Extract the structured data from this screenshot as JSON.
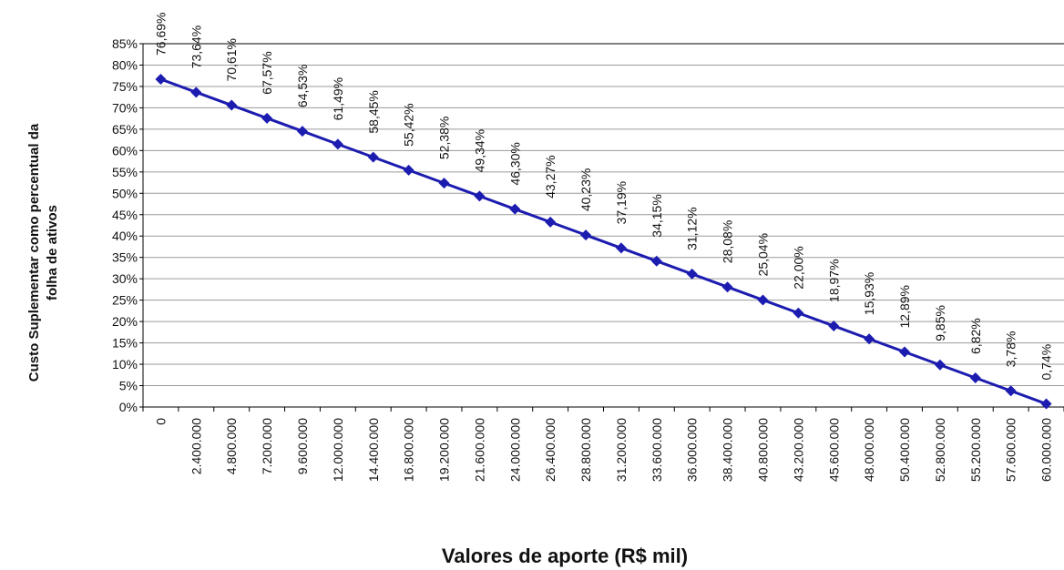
{
  "chart_data": {
    "type": "line",
    "ylabel": [
      "Custo Suplementar como percentual da",
      "folha de ativos"
    ],
    "xlabel": "Valores de aporte (R$ mil)",
    "categories": [
      "0",
      "2.400.000",
      "4.800.000",
      "7.200.000",
      "9.600.000",
      "12.000.000",
      "14.400.000",
      "16.800.000",
      "19.200.000",
      "21.600.000",
      "24.000.000",
      "26.400.000",
      "28.800.000",
      "31.200.000",
      "33.600.000",
      "36.000.000",
      "38.400.000",
      "40.800.000",
      "43.200.000",
      "45.600.000",
      "48.000.000",
      "50.400.000",
      "52.800.000",
      "55.200.000",
      "57.600.000",
      "60.000.000"
    ],
    "values": [
      76.69,
      73.64,
      70.61,
      67.57,
      64.53,
      61.49,
      58.45,
      55.42,
      52.38,
      49.34,
      46.3,
      43.27,
      40.23,
      37.19,
      34.15,
      31.12,
      28.08,
      25.04,
      22.0,
      18.97,
      15.93,
      12.89,
      9.85,
      6.82,
      3.78,
      0.74
    ],
    "value_labels": [
      "76,69%",
      "73,64%",
      "70,61%",
      "67,57%",
      "64,53%",
      "61,49%",
      "58,45%",
      "55,42%",
      "52,38%",
      "49,34%",
      "46,30%",
      "43,27%",
      "40,23%",
      "37,19%",
      "34,15%",
      "31,12%",
      "28,08%",
      "25,04%",
      "22,00%",
      "18,97%",
      "15,93%",
      "12,89%",
      "9,85%",
      "6,82%",
      "3,78%",
      "0,74%"
    ],
    "color": "#1c1cb0",
    "ylim": [
      0,
      85
    ],
    "yticks": [
      {
        "value": 0,
        "label": "0%"
      },
      {
        "value": 5,
        "label": "5%"
      },
      {
        "value": 10,
        "label": "10%"
      },
      {
        "value": 15,
        "label": "15%"
      },
      {
        "value": 20,
        "label": "20%"
      },
      {
        "value": 25,
        "label": "25%"
      },
      {
        "value": 30,
        "label": "30%"
      },
      {
        "value": 35,
        "label": "35%"
      },
      {
        "value": 40,
        "label": "40%"
      },
      {
        "value": 45,
        "label": "45%"
      },
      {
        "value": 50,
        "label": "50%"
      },
      {
        "value": 55,
        "label": "55%"
      },
      {
        "value": 60,
        "label": "60%"
      },
      {
        "value": 65,
        "label": "65%"
      },
      {
        "value": 70,
        "label": "70%"
      },
      {
        "value": 75,
        "label": "75%"
      },
      {
        "value": 80,
        "label": "80%"
      },
      {
        "value": 85,
        "label": "85%"
      }
    ],
    "grid": true
  }
}
